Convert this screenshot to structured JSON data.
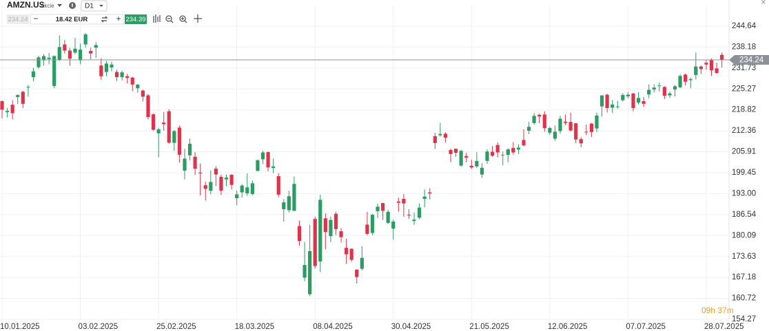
{
  "toolbar": {
    "symbol": "AMZN.US",
    "asset_type": "Akcie",
    "timeframe": "D1",
    "bid": "234.24",
    "amount": "18.42 EUR",
    "ask": "234.39"
  },
  "countdown": "09h 37m",
  "chart_data": {
    "type": "candlestick",
    "categories": [
      "10.01.2025",
      null,
      null,
      null,
      null,
      null,
      null,
      null,
      null,
      null,
      null,
      null,
      null,
      null,
      null,
      "03.02.2025",
      null,
      null,
      null,
      null,
      null,
      null,
      null,
      null,
      null,
      null,
      null,
      null,
      null,
      null,
      "25.02.2025",
      null,
      null,
      null,
      null,
      null,
      null,
      null,
      null,
      null,
      null,
      null,
      null,
      null,
      null,
      "18.03.2025",
      null,
      null,
      null,
      null,
      null,
      null,
      null,
      null,
      null,
      null,
      null,
      null,
      null,
      null,
      "08.04.2025",
      null,
      null,
      null,
      null,
      null,
      null,
      null,
      null,
      null,
      null,
      null,
      null,
      null,
      null,
      "30.04.2025",
      null,
      null,
      null,
      null,
      null,
      null,
      null,
      null,
      null,
      null,
      null,
      null,
      null,
      null,
      "21.05.2025",
      null,
      null,
      null,
      null,
      null,
      null,
      null,
      null,
      null,
      null,
      null,
      null,
      null,
      null,
      "12.06.2025",
      null,
      null,
      null,
      null,
      null,
      null,
      null,
      null,
      null,
      null,
      null,
      null,
      null,
      null,
      "07.07.2025",
      null,
      null,
      null,
      null,
      null,
      null,
      null,
      null,
      null,
      null,
      null,
      null,
      null,
      null,
      "28.07.2025",
      null,
      null,
      null
    ],
    "open": [
      221.5,
      218.1,
      220.4,
      222.8,
      224.4,
      225.8,
      228.9,
      232.0,
      234.1,
      234.5,
      226.2,
      234.3,
      239.0,
      237.1,
      236.5,
      234.1,
      239.0,
      237.0,
      238.0,
      232.5,
      230.5,
      231.9,
      230.5,
      228.9,
      229.2,
      228.8,
      225.5,
      224.8,
      223.3,
      217.45,
      211.6,
      214.9,
      218.4,
      208.65,
      213.35,
      200.1,
      204.8,
      204.4,
      199.5,
      195.6,
      193.9,
      200.7,
      198.2,
      197.4,
      198.8,
      191.6,
      193.4,
      193.1,
      192.9,
      200.0,
      203.6,
      205.8,
      200.9,
      198.4,
      188.2,
      187.9,
      187.7,
      183.0,
      167.1,
      162.0,
      185.2,
      172.1,
      185.4,
      179.9,
      186.8,
      181.4,
      176.3,
      176.0,
      169.6,
      169.85,
      183.45,
      180.9,
      187.6,
      190.1,
      183.99,
      182.2,
      190.6,
      191.4,
      186.5,
      184.6,
      185.6,
      191.4,
      193.4,
      210.7,
      211.0,
      211.45,
      206.45,
      206.85,
      201.65,
      204.6,
      201.6,
      201.4,
      198.9,
      203.1,
      205.9,
      208.0,
      204.8,
      204.98,
      207.1,
      206.6,
      209.55,
      212.4,
      214.75,
      217.3,
      217.4,
      211.8,
      209.96,
      212.3,
      215.2,
      215.1,
      214.7,
      209.8,
      212.1,
      214.6,
      213.1,
      219.9,
      223.5,
      219.5,
      219.7,
      221.8,
      223.0,
      223.9,
      221.1,
      221.5,
      223.6,
      225.1,
      226.2,
      225.9,
      223.3,
      225.1,
      225.8,
      229.7,
      228.0,
      229.6,
      232.2,
      233.35,
      234.15,
      231.6,
      235.8
    ],
    "high": [
      221.7,
      219.4,
      221.8,
      223.6,
      224.7,
      226.5,
      231.8,
      235.5,
      236.0,
      236.4,
      235.6,
      241.8,
      240.4,
      237.9,
      241.0,
      239.3,
      242.5,
      238.0,
      239.7,
      234.8,
      233.9,
      233.7,
      231.2,
      230.9,
      229.9,
      229.0,
      226.8,
      225.0,
      223.7,
      217.7,
      213.3,
      218.2,
      219.0,
      212.6,
      214.0,
      206.8,
      209.98,
      205.8,
      202.3,
      196.7,
      200.2,
      201.5,
      198.9,
      198.9,
      199.0,
      194.0,
      195.9,
      199.3,
      196.99,
      203.6,
      206.2,
      206.0,
      203.8,
      199.3,
      191.3,
      193.9,
      198.3,
      184.7,
      178.1,
      183.4,
      185.9,
      192.65,
      186.9,
      185.9,
      187.4,
      182.35,
      179.1,
      176.2,
      169.6,
      176.8,
      187.4,
      186.7,
      189.9,
      190.2,
      188.0,
      185.0,
      191.8,
      192.9,
      188.2,
      187.2,
      190.0,
      194.3,
      194.7,
      211.7,
      214.8,
      211.9,
      206.9,
      206.85,
      206.6,
      205.6,
      203.45,
      205.8,
      202.4,
      206.7,
      207.65,
      208.8,
      205.99,
      207.0,
      208.9,
      208.2,
      212.8,
      215.1,
      217.85,
      217.7,
      218.4,
      213.6,
      214.0,
      217.0,
      217.4,
      217.95,
      214.7,
      210.4,
      214.3,
      214.8,
      218.0,
      223.3,
      223.8,
      221.9,
      221.6,
      224.0,
      224.3,
      224.0,
      224.3,
      222.8,
      226.7,
      226.7,
      227.3,
      226.1,
      224.5,
      226.4,
      229.7,
      230.0,
      228.8,
      236.5,
      232.5,
      234.3,
      234.7,
      233.4,
      236.5
    ],
    "low": [
      216.2,
      216.5,
      215.9,
      220.6,
      219.4,
      222.9,
      227.6,
      231.5,
      232.4,
      232.9,
      225.5,
      233.9,
      236.2,
      232.4,
      236.0,
      232.9,
      238.0,
      234.4,
      234.9,
      228.1,
      229.2,
      230.7,
      227.7,
      227.9,
      227.0,
      224.6,
      224.1,
      221.4,
      215.9,
      212.4,
      204.2,
      212.4,
      208.4,
      206.2,
      202.6,
      197.4,
      203.3,
      198.8,
      192.5,
      190.9,
      192.8,
      195.3,
      192.6,
      195.3,
      194.3,
      189.4,
      191.8,
      192.3,
      192.5,
      199.95,
      202.1,
      199.9,
      199.3,
      191.9,
      184.4,
      187.2,
      187.7,
      177.0,
      166.0,
      161.4,
      169.9,
      168.8,
      175.85,
      178.0,
      180.2,
      177.9,
      171.4,
      172.0,
      165.3,
      169.35,
      180.2,
      180.2,
      185.5,
      184.9,
      183.7,
      178.9,
      187.5,
      185.9,
      185.2,
      183.4,
      185.1,
      188.8,
      191.2,
      206.75,
      210.6,
      208.85,
      202.7,
      204.4,
      201.3,
      202.65,
      200.6,
      200.9,
      197.85,
      202.2,
      204.4,
      204.2,
      201.7,
      202.7,
      205.0,
      205.2,
      207.6,
      211.4,
      214.2,
      214.75,
      212.1,
      211.1,
      209.3,
      211.5,
      214.1,
      212.1,
      208.5,
      207.3,
      211.05,
      210.5,
      212.0,
      216.7,
      218.0,
      217.9,
      219.1,
      221.4,
      222.3,
      218.4,
      220.5,
      219.7,
      222.4,
      224.2,
      224.5,
      222.2,
      222.5,
      222.98,
      225.5,
      226.35,
      225.5,
      228.2,
      229.9,
      231.2,
      229.3,
      230.0,
      231.9
    ],
    "close": [
      218.9,
      218.5,
      217.8,
      223.4,
      220.7,
      225.9,
      230.7,
      235.0,
      235.4,
      234.9,
      235.4,
      238.2,
      237.1,
      234.6,
      237.7,
      237.4,
      242.1,
      236.2,
      238.8,
      229.2,
      233.1,
      232.8,
      228.9,
      230.4,
      228.7,
      226.65,
      226.6,
      222.9,
      216.6,
      212.7,
      212.8,
      214.4,
      208.7,
      212.3,
      205.0,
      203.8,
      208.4,
      200.7,
      199.25,
      194.5,
      196.6,
      198.9,
      193.9,
      197.95,
      195.7,
      192.8,
      195.5,
      194.95,
      196.2,
      203.3,
      205.7,
      201.1,
      201.4,
      192.7,
      190.3,
      192.2,
      196.0,
      178.4,
      171.0,
      175.3,
      170.7,
      191.1,
      181.2,
      184.9,
      182.1,
      179.6,
      174.3,
      172.6,
      167.3,
      173.2,
      180.6,
      186.5,
      188.99,
      187.7,
      187.4,
      184.4,
      190.2,
      189.98,
      186.35,
      185.0,
      188.7,
      192.1,
      193.06,
      208.6,
      211.4,
      210.25,
      205.2,
      205.6,
      206.2,
      204.1,
      201.1,
      203.1,
      200.99,
      206.0,
      204.7,
      205.7,
      205.0,
      206.65,
      205.7,
      207.2,
      207.9,
      213.6,
      216.98,
      216.8,
      213.2,
      213.24,
      212.1,
      216.1,
      214.8,
      212.5,
      209.7,
      208.5,
      211.99,
      211.99,
      217.1,
      223.3,
      219.4,
      220.5,
      219.9,
      223.4,
      223.5,
      219.4,
      222.5,
      220.7,
      225.0,
      225.7,
      226.35,
      223.2,
      223.9,
      226.1,
      229.3,
      227.5,
      228.3,
      232.2,
      231.4,
      232.8,
      231.0,
      230.2,
      234.24
    ],
    "up_color": "#2a9d62",
    "down_color": "#e0324a",
    "price_line": 234.24,
    "price_line_color": "#8c9199",
    "ylim": [
      154.27,
      251.0
    ],
    "yticks": [
      244.64,
      238.18,
      231.73,
      225.27,
      218.82,
      212.36,
      205.91,
      199.45,
      {
        "value": 193.0,
        "label": "193.00"
      },
      186.54,
      180.09,
      173.63,
      167.18,
      160.72,
      154.27
    ],
    "grid": true
  }
}
